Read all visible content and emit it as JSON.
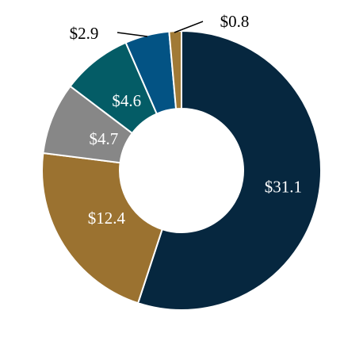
{
  "chart_data": {
    "type": "pie",
    "style": "donut",
    "title": "",
    "categories": [
      "",
      "",
      "",
      "",
      "",
      ""
    ],
    "values": [
      31.1,
      12.4,
      4.7,
      4.6,
      2.9,
      0.8
    ],
    "labels": [
      "$31.1",
      "$12.4",
      "$4.7",
      "$4.6",
      "$2.9",
      "$0.8"
    ],
    "colors": [
      "#06273f",
      "#9b7230",
      "#878787",
      "#045c66",
      "#035384",
      "#a17a36"
    ],
    "label_placement": [
      "inside",
      "inside",
      "inside",
      "inside",
      "outside",
      "outside"
    ],
    "start": "top",
    "direction": "clockwise",
    "legend": "none"
  }
}
